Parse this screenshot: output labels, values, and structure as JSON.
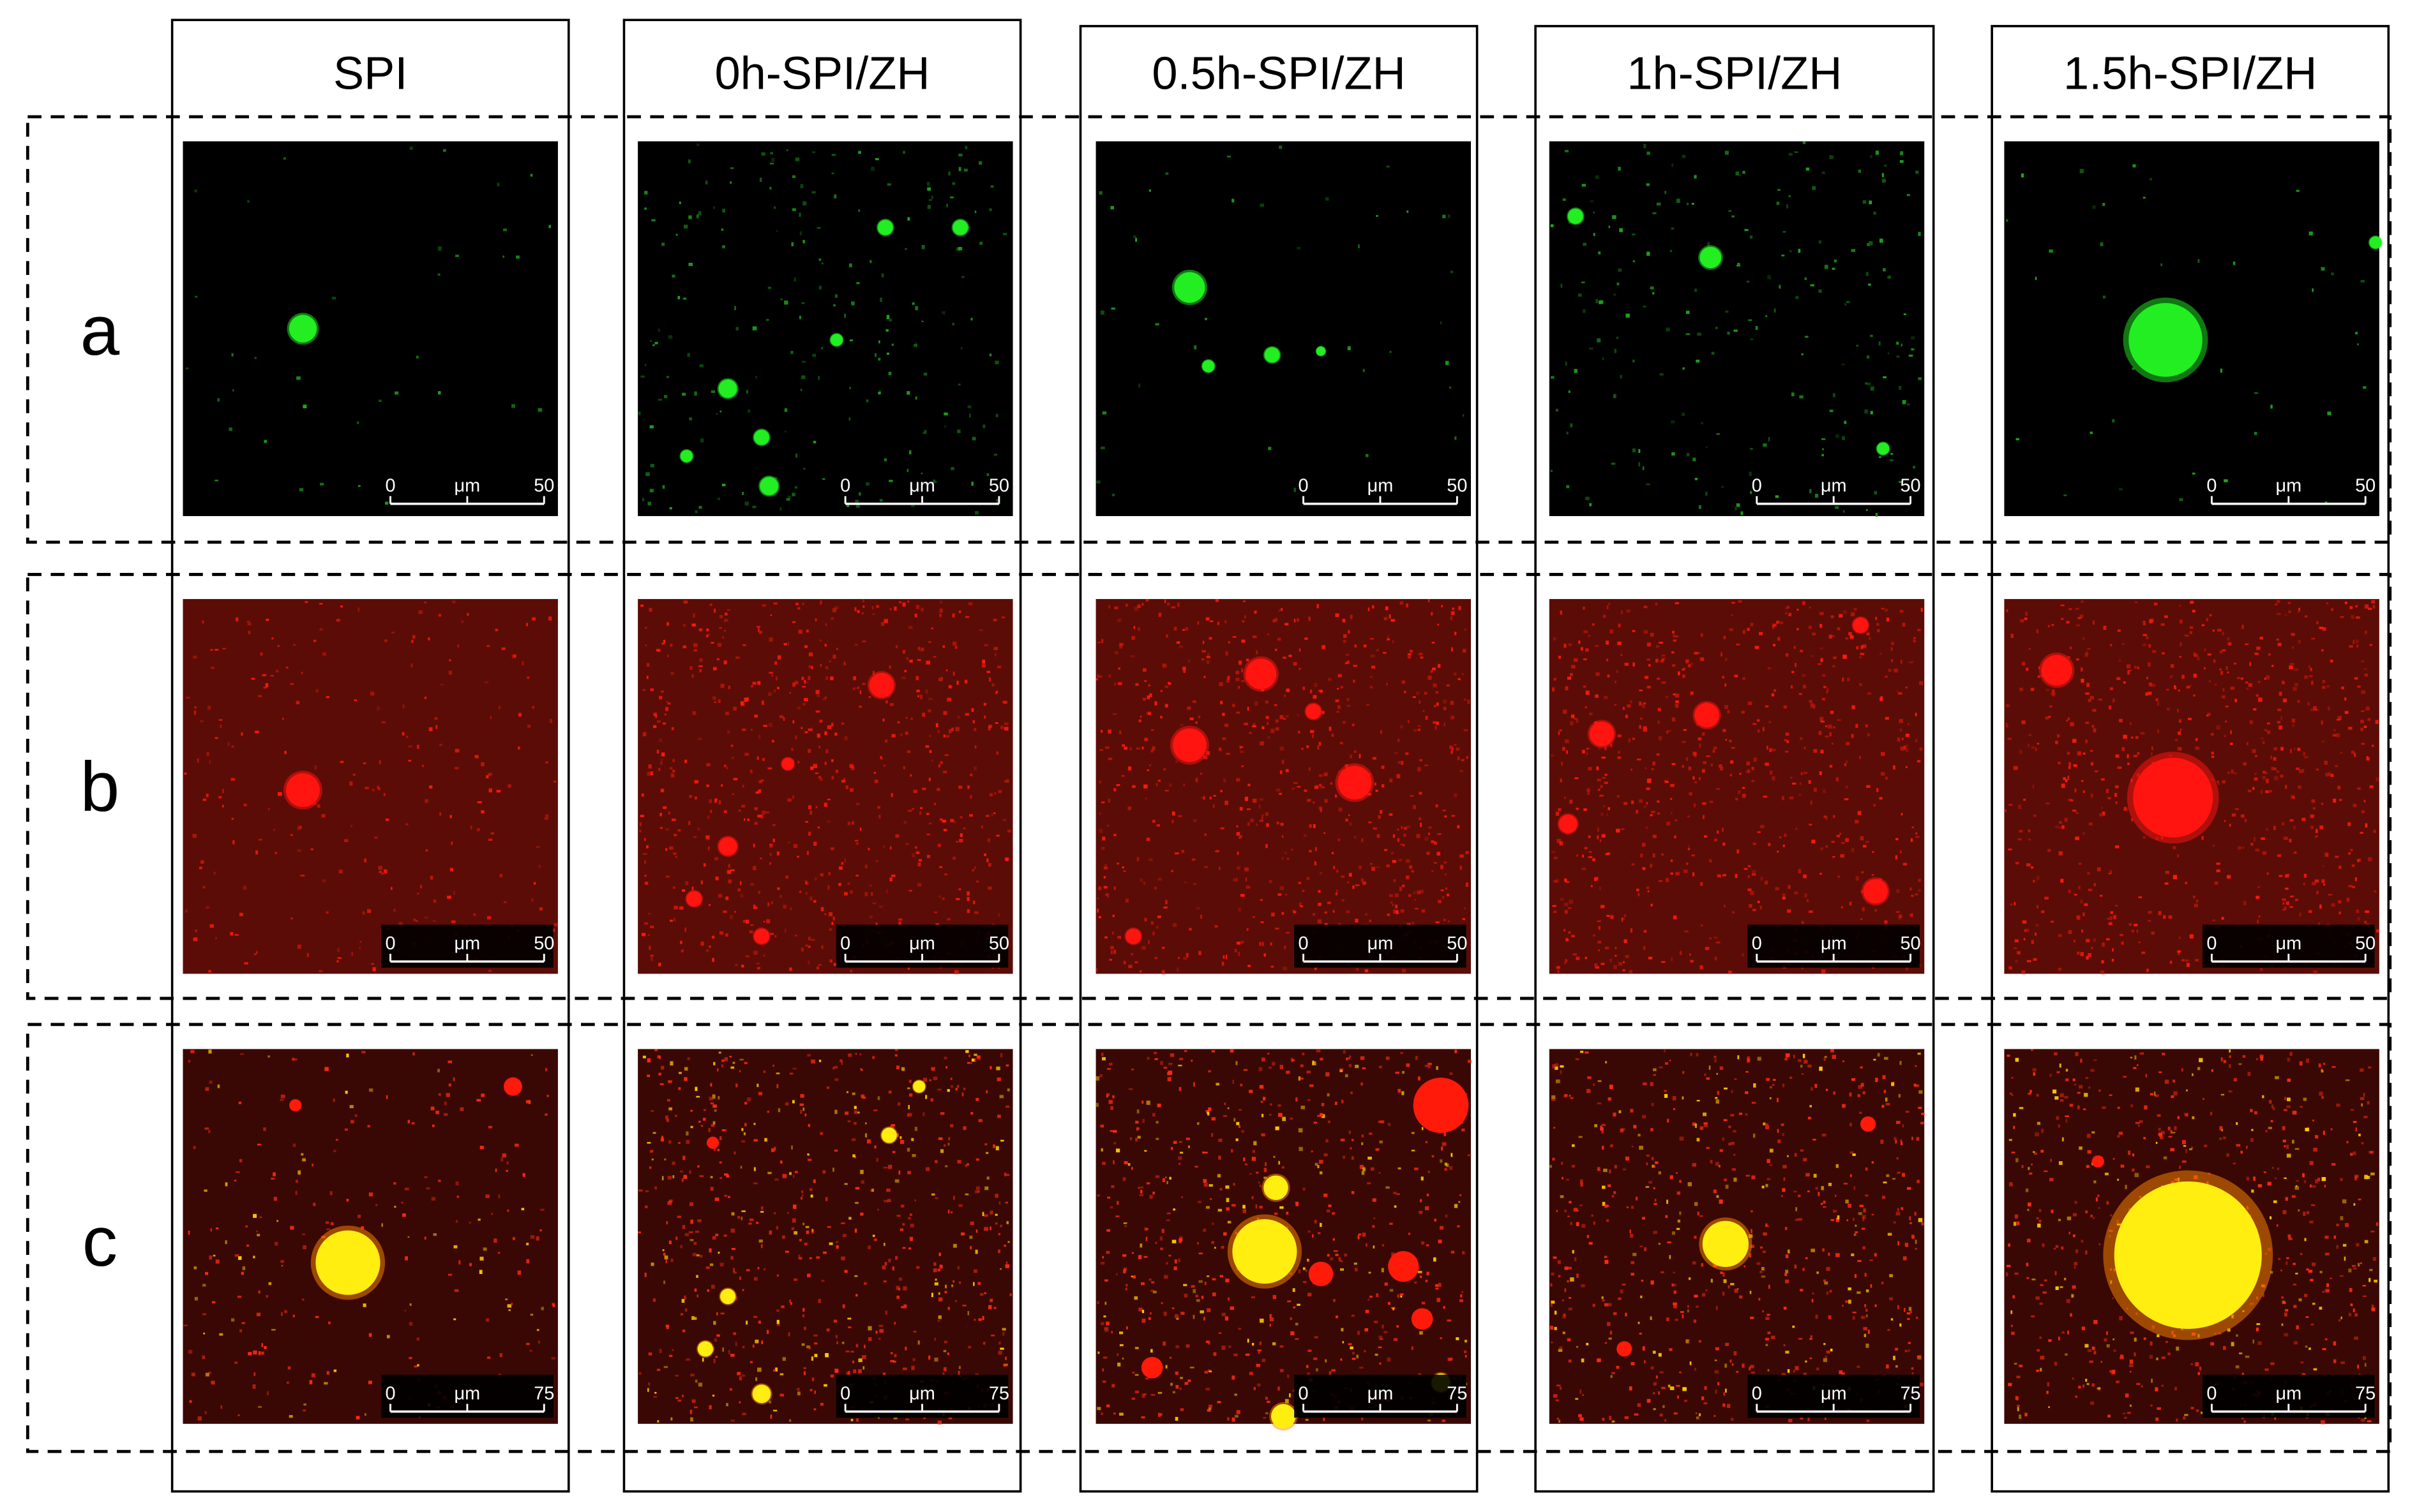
{
  "columns": [
    "SPI",
    "0h-SPI/ZH",
    "0.5h-SPI/ZH",
    "1h-SPI/ZH",
    "1.5h-SPI/ZH"
  ],
  "rows": [
    {
      "label": "a",
      "scale_bar": {
        "start": 0,
        "unit": "μm",
        "end": 50
      }
    },
    {
      "label": "b",
      "scale_bar": {
        "start": 0,
        "unit": "μm",
        "end": 50
      }
    },
    {
      "label": "c",
      "scale_bar": {
        "start": 0,
        "unit": "μm",
        "end": 75
      }
    }
  ]
}
